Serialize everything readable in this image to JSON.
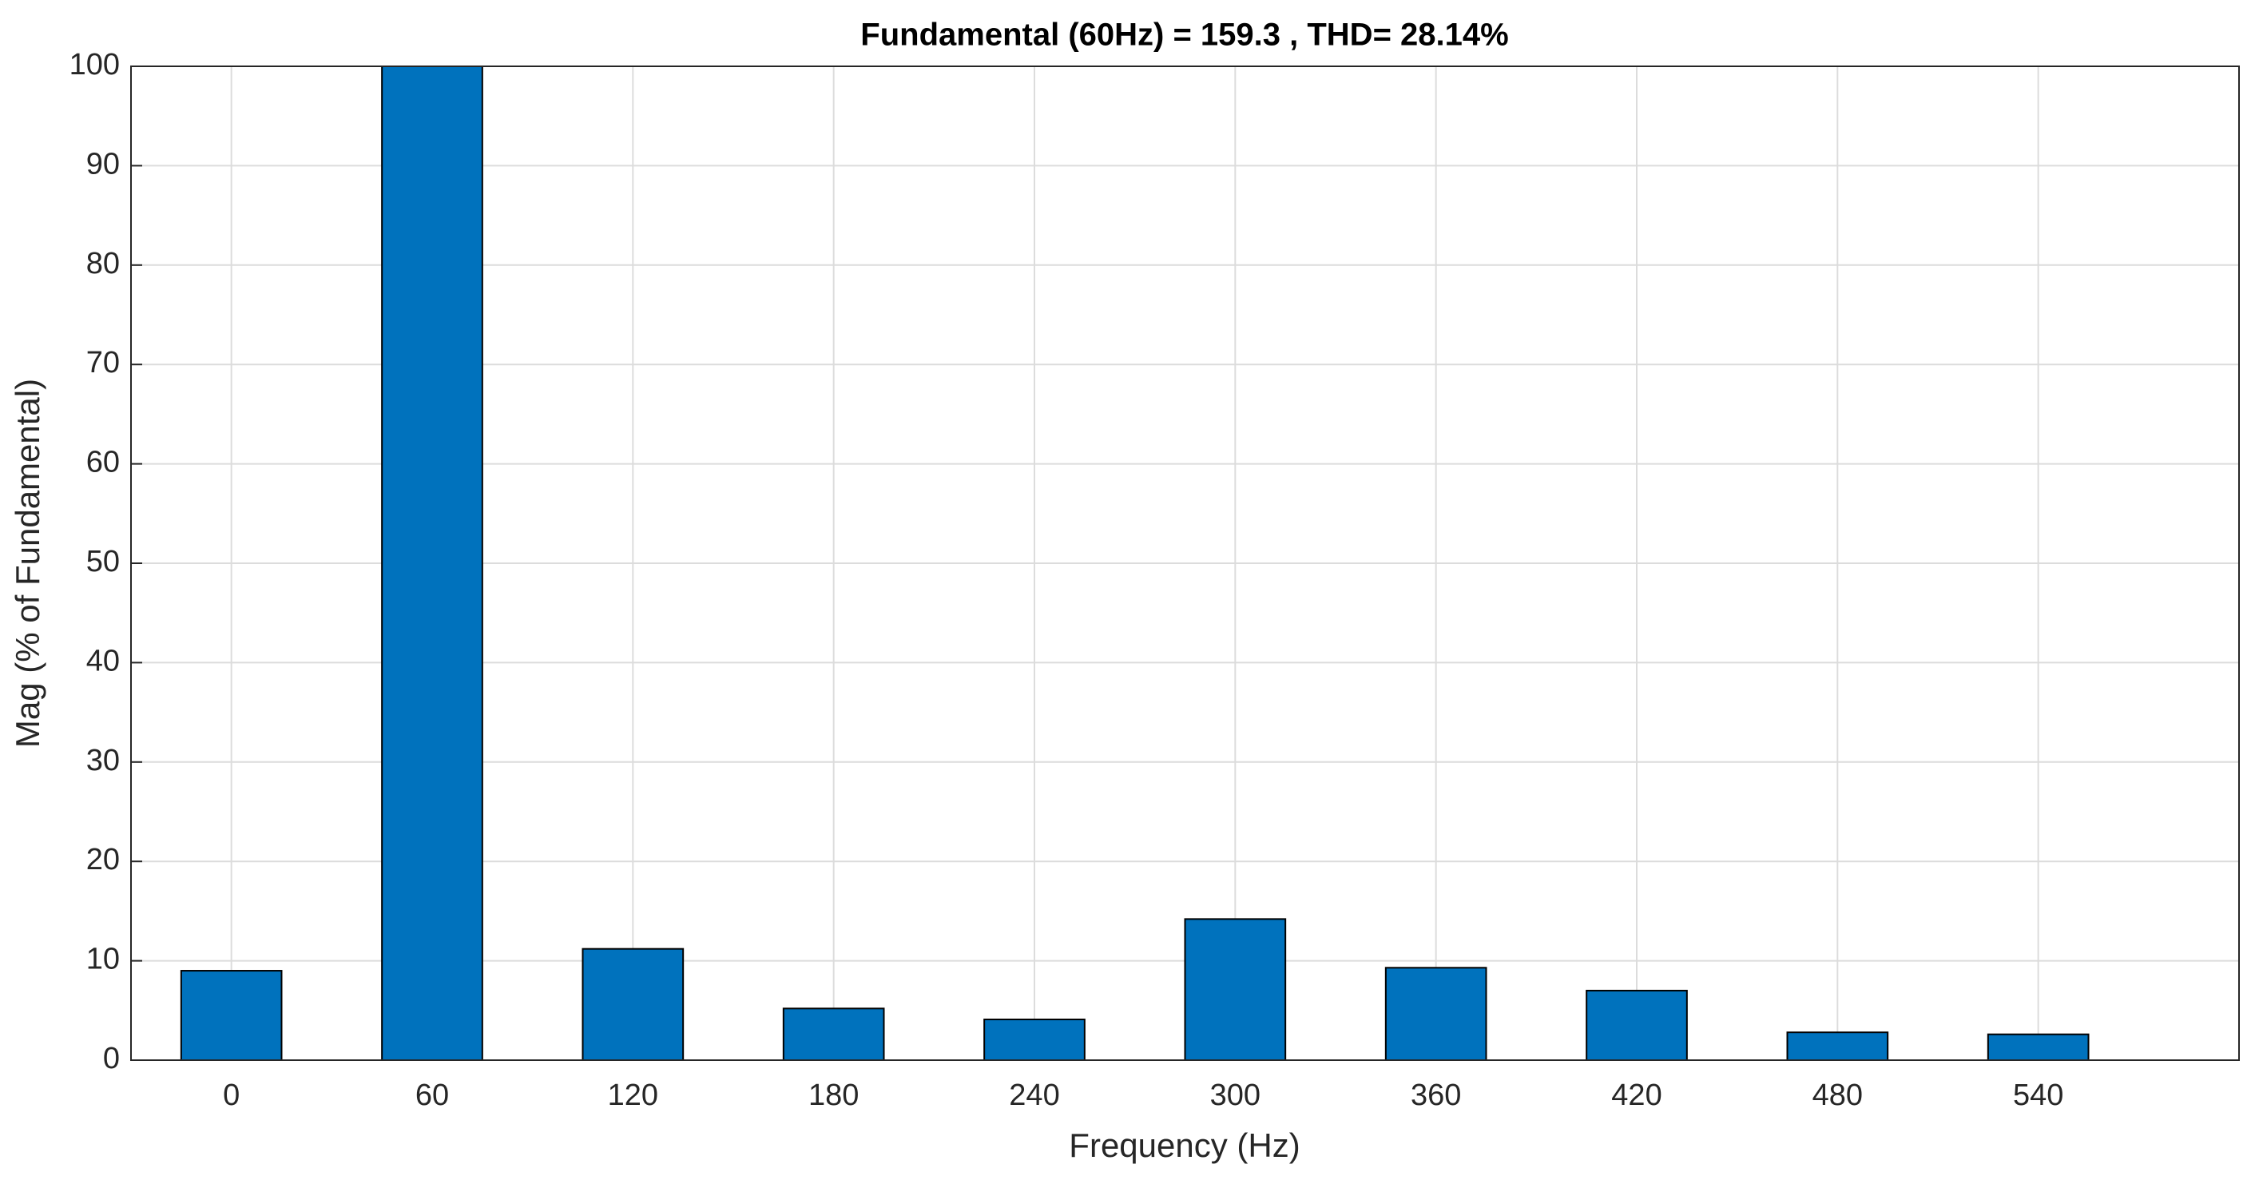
{
  "chart_data": {
    "type": "bar",
    "title": "Fundamental (60Hz) = 159.3 , THD= 28.14%",
    "x_label": "Frequency (Hz)",
    "y_label": "Mag (% of Fundamental)",
    "x": [
      0,
      60,
      120,
      180,
      240,
      300,
      360,
      420,
      480,
      540
    ],
    "values": [
      9,
      100,
      11.2,
      5.2,
      4.1,
      14.2,
      9.3,
      7,
      2.8,
      2.6
    ],
    "color": "#0072bd",
    "xlim": [
      -30,
      600
    ],
    "xticks": [
      0,
      60,
      120,
      180,
      240,
      300,
      360,
      420,
      480,
      540
    ],
    "ylim": [
      0,
      100
    ],
    "yticks": [
      0,
      10,
      20,
      30,
      40,
      50,
      60,
      70,
      80,
      90,
      100
    ],
    "grid": true
  }
}
